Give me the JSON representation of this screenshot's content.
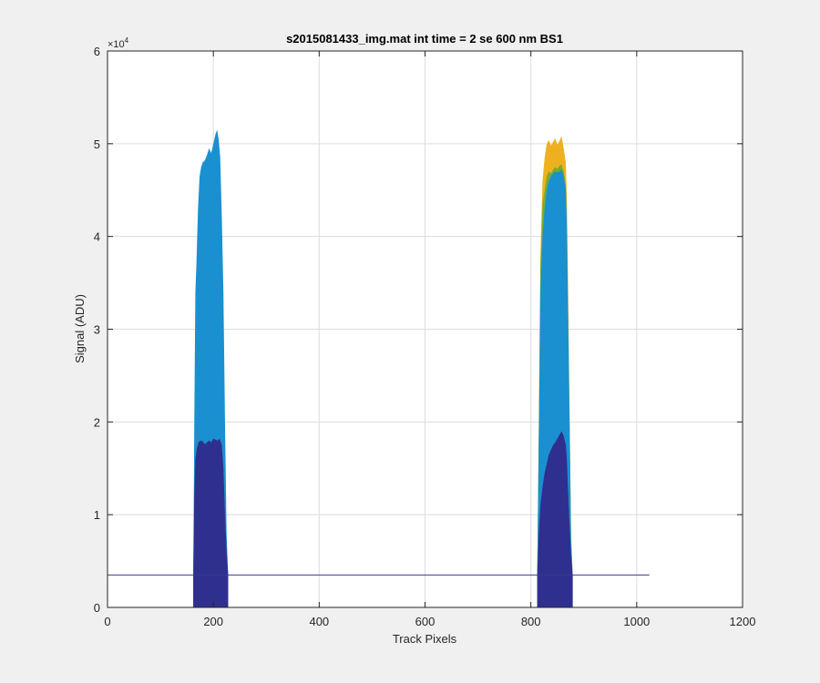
{
  "chart_data": {
    "type": "area",
    "title": "s2015081433_img.mat int time = 2 se  600 nm BS1",
    "xlabel": "Track Pixels",
    "ylabel": "Signal (ADU)",
    "xlim": [
      0,
      1200
    ],
    "ylim": [
      0,
      60000
    ],
    "x_ticks": [
      0,
      200,
      400,
      600,
      800,
      1000,
      1200
    ],
    "x_tick_labels": [
      "0",
      "200",
      "400",
      "600",
      "800",
      "1000",
      "1200"
    ],
    "y_ticks": [
      0,
      10000,
      20000,
      30000,
      40000,
      50000,
      60000
    ],
    "y_tick_labels": [
      "0",
      "1",
      "2",
      "3",
      "4",
      "5",
      "6"
    ],
    "y_exponent_label": "×10",
    "y_exponent_power": "4",
    "grid": true,
    "baseline": 3500,
    "baseline_x": [
      0,
      1024
    ],
    "series": [
      {
        "color": "#EDB120",
        "x": [
          812,
          815,
          818,
          822,
          826,
          830,
          834,
          838,
          842,
          846,
          850,
          854,
          858,
          862,
          866,
          868,
          870,
          873,
          876,
          879
        ],
        "values": [
          3500,
          20000,
          38000,
          46000,
          48500,
          50000,
          50400,
          49800,
          50200,
          50600,
          49900,
          50300,
          50800,
          49500,
          48000,
          44000,
          36000,
          22000,
          8000,
          3500
        ]
      },
      {
        "color": "#77AC30",
        "x": [
          812,
          815,
          818,
          822,
          826,
          830,
          834,
          838,
          842,
          846,
          850,
          854,
          858,
          862,
          866,
          868,
          870,
          873,
          876,
          879
        ],
        "values": [
          3500,
          19000,
          36500,
          43500,
          45000,
          46500,
          47000,
          46800,
          47200,
          47500,
          47300,
          47600,
          47800,
          47000,
          45500,
          42000,
          34000,
          21000,
          7500,
          3500
        ]
      },
      {
        "color": "#1A90D0",
        "x": [
          162,
          164,
          166,
          168,
          171,
          174,
          177,
          180,
          184,
          188,
          192,
          196,
          200,
          204,
          207,
          210,
          213,
          216,
          219,
          222,
          225,
          228
        ],
        "values": [
          3500,
          20000,
          34000,
          37000,
          43000,
          46500,
          47500,
          48000,
          48200,
          48800,
          49500,
          49000,
          50000,
          51000,
          51500,
          50500,
          48500,
          42000,
          34000,
          20000,
          8000,
          3500
        ]
      },
      {
        "color": "#1A90D0",
        "x": [
          812,
          815,
          818,
          822,
          826,
          830,
          834,
          838,
          842,
          846,
          850,
          854,
          858,
          862,
          866,
          868,
          870,
          873,
          876,
          879
        ],
        "values": [
          3500,
          18000,
          34000,
          40000,
          43000,
          45000,
          46000,
          46500,
          46800,
          47000,
          46900,
          47000,
          47200,
          46500,
          45000,
          41000,
          33000,
          20000,
          7000,
          3500
        ]
      },
      {
        "color": "#2F2F8F",
        "x": [
          162,
          164,
          166,
          169,
          172,
          176,
          180,
          184,
          188,
          192,
          196,
          200,
          204,
          208,
          212,
          216,
          219,
          222,
          225,
          228
        ],
        "values": [
          3500,
          12000,
          16000,
          17200,
          17800,
          18000,
          17900,
          17600,
          17800,
          18000,
          17800,
          18200,
          18100,
          18000,
          18200,
          17500,
          15000,
          10000,
          6000,
          3500
        ]
      },
      {
        "color": "#2F2F8F",
        "x": [
          812,
          815,
          818,
          822,
          826,
          830,
          834,
          838,
          842,
          846,
          850,
          854,
          858,
          862,
          866,
          868,
          870,
          873,
          876,
          879
        ],
        "values": [
          3500,
          8000,
          11000,
          13000,
          14500,
          15500,
          16500,
          17000,
          17500,
          17800,
          18200,
          18600,
          19000,
          18500,
          17500,
          16000,
          13000,
          9000,
          5500,
          3500
        ]
      }
    ]
  }
}
